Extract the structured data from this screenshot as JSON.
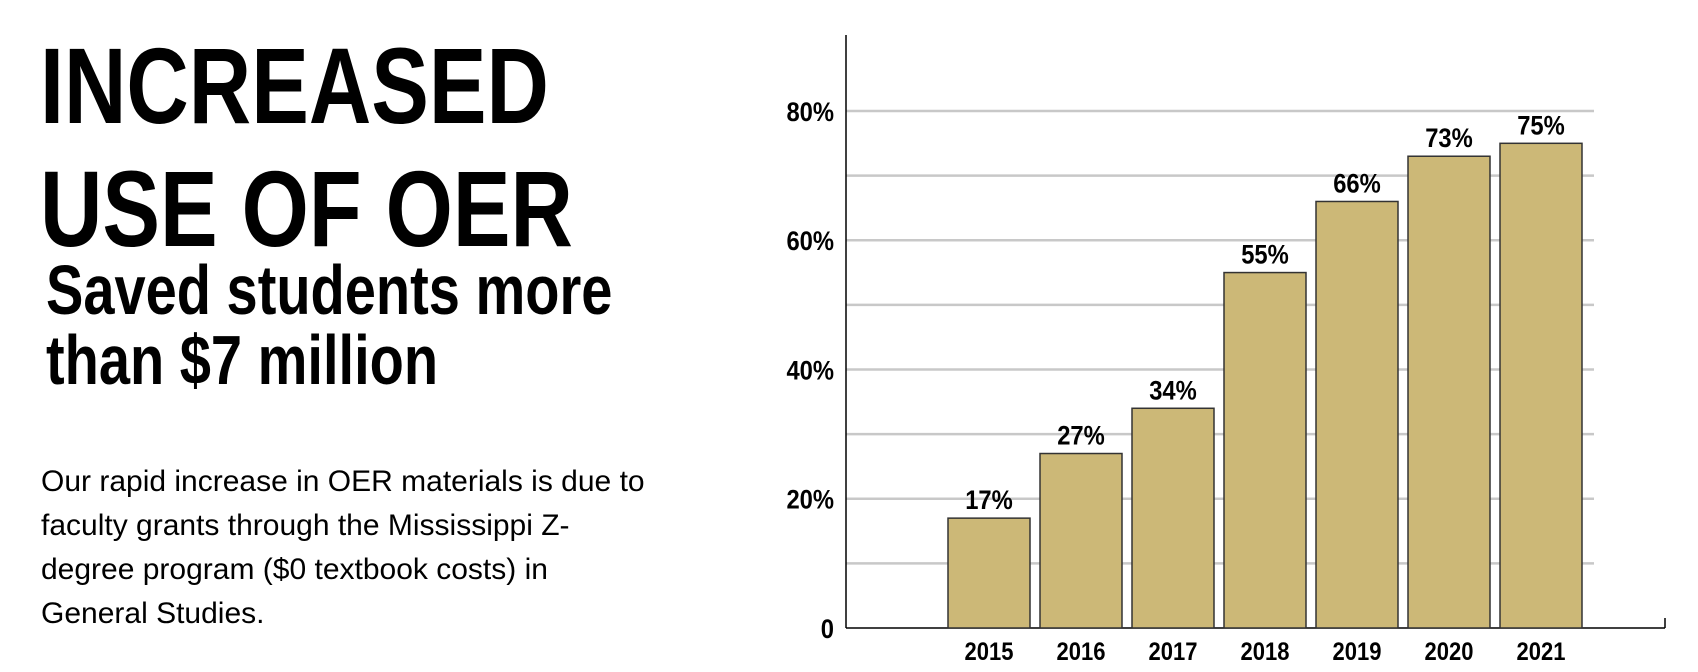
{
  "headline": {
    "line1": "INCREASED",
    "line2": "USE OF OER"
  },
  "subheadline": {
    "line1": "Saved students more",
    "line2": "than $7 million"
  },
  "body_text": "Our rapid increase in OER materials is due to faculty grants through the Mississippi Z-degree program ($0 textbook costs) in General Studies.",
  "chart_data": {
    "type": "bar",
    "categories": [
      "2015",
      "2016",
      "2017",
      "2018",
      "2019",
      "2020",
      "2021"
    ],
    "values": [
      17,
      27,
      34,
      55,
      66,
      73,
      75
    ],
    "data_labels": [
      "17%",
      "27%",
      "34%",
      "55%",
      "66%",
      "73%",
      "75%"
    ],
    "ytick_values": [
      0,
      20,
      40,
      60,
      80
    ],
    "ytick_labels": [
      "0",
      "20%",
      "40%",
      "60%",
      "80%"
    ],
    "minor_grid_step": 10,
    "ylim": [
      0,
      87
    ],
    "grid": true,
    "title": "",
    "xlabel": "",
    "ylabel": "",
    "bar_color": "#CCB877",
    "bar_edge_color": "#333333",
    "grid_color": "#C8C8C8"
  }
}
